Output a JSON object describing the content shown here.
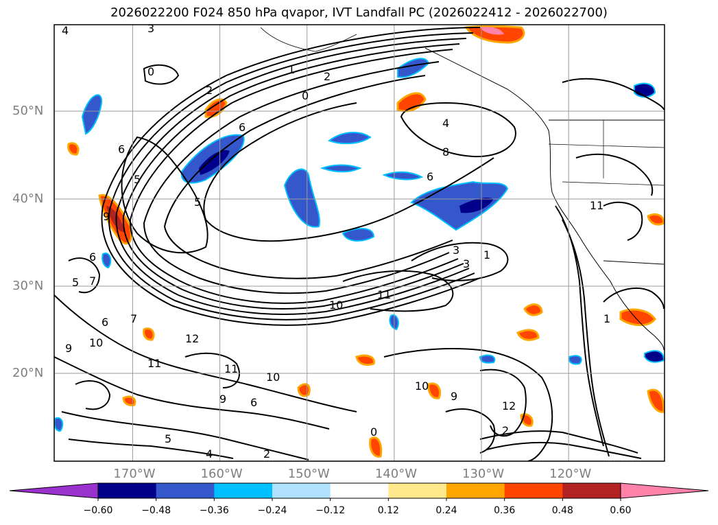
{
  "title": "2026022200 F024 850 hPa qvapor, IVT Landfall PC (2026022412 - 2026022700)",
  "map": {
    "lon_range": [
      -179,
      -109
    ],
    "lat_range": [
      10,
      60
    ],
    "gridlines": true,
    "lat_ticks": [
      {
        "value": 50,
        "label": "50°N"
      },
      {
        "value": 40,
        "label": "40°N"
      },
      {
        "value": 30,
        "label": "30°N"
      },
      {
        "value": 20,
        "label": "20°N"
      }
    ],
    "lon_ticks": [
      {
        "value": -170,
        "label": "170°W"
      },
      {
        "value": -160,
        "label": "160°W"
      },
      {
        "value": -150,
        "label": "150°W"
      },
      {
        "value": -140,
        "label": "140°W"
      },
      {
        "value": -130,
        "label": "130°W"
      },
      {
        "value": -120,
        "label": "120°W"
      }
    ],
    "contour_labels": [
      "4",
      "3",
      "0",
      "2",
      "1",
      "0",
      "2",
      "6",
      "8",
      "6",
      "5",
      "6",
      "5",
      "9",
      "6",
      "5",
      "7",
      "6",
      "7",
      "10",
      "9",
      "11",
      "12",
      "11",
      "10",
      "9",
      "6",
      "5",
      "4",
      "2",
      "3",
      "1",
      "3",
      "11",
      "10",
      "10",
      "9",
      "12",
      "2",
      "11",
      "1",
      "0",
      "4"
    ]
  },
  "colorbar": {
    "extend": "both",
    "colors": [
      "#9932cc",
      "#00008b",
      "#3458cc",
      "#00bfff",
      "#b0e2ff",
      "#ffffff",
      "#ffe98c",
      "#ffa500",
      "#ff4500",
      "#b22222",
      "#ff82ab",
      "#ff82ab"
    ],
    "ticks": [
      "−0.60",
      "−0.48",
      "−0.36",
      "−0.24",
      "−0.12",
      "0.12",
      "0.24",
      "0.36",
      "0.48",
      "0.60"
    ]
  }
}
